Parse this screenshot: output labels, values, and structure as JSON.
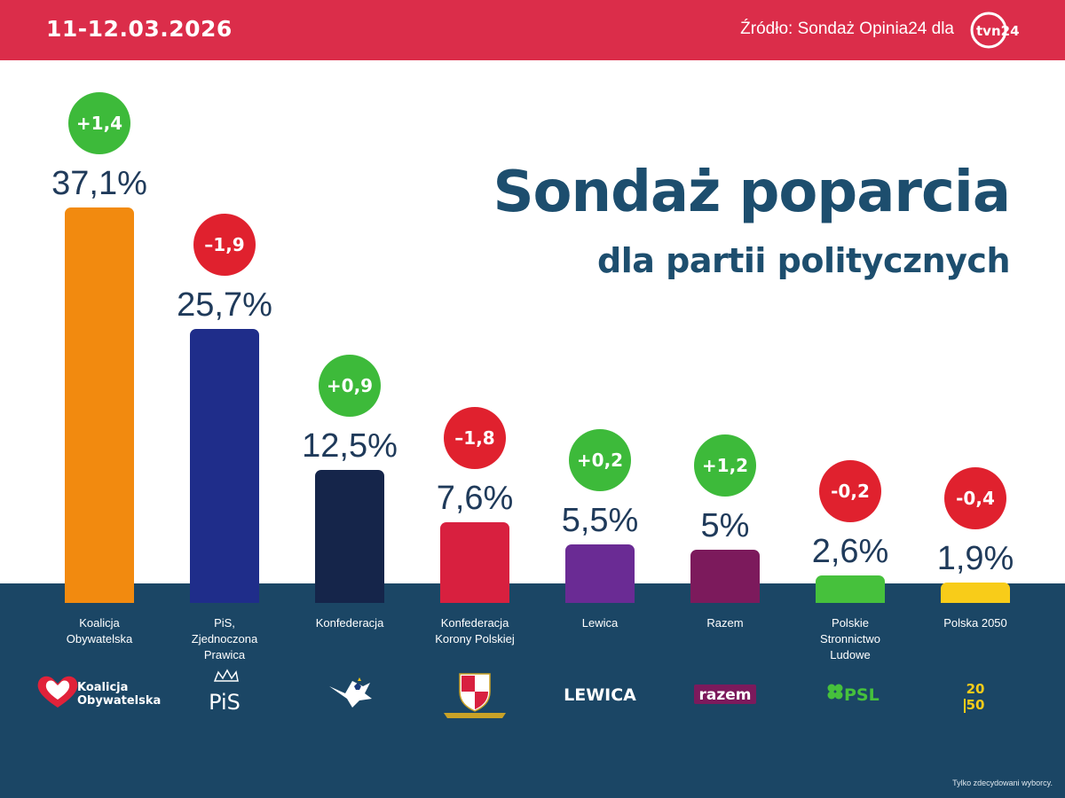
{
  "header": {
    "date": "11-12.03.2026",
    "source": "Źródło: Sondaż Opinia24 dla",
    "logo_text": "tvn24"
  },
  "title": "Sondaż poparcia",
  "subtitle": "dla partii politycznych",
  "footnote": "Tylko zdecydowani wyborcy.",
  "colors": {
    "header_bg": "#db2d4a",
    "bottom_bg": "#1b4665",
    "title": "#1d4e6e",
    "increase": "#3dba3a",
    "decrease": "#e0212e"
  },
  "chart_data": {
    "type": "bar",
    "categories": [
      "Koalicja Obywatelska",
      "PiS, Zjednoczona Prawica",
      "Konfederacja",
      "Konfederacja Korony Polskiej",
      "Lewica",
      "Razem",
      "Polskie Stronnictwo Ludowe",
      "Polska 2050"
    ],
    "values": [
      37.1,
      25.7,
      12.5,
      7.6,
      5.5,
      5,
      2.6,
      1.9
    ],
    "value_labels": [
      "37,1%",
      "25,7%",
      "12,5%",
      "7,6%",
      "5,5%",
      "5%",
      "2,6%",
      "1,9%"
    ],
    "changes": [
      1.4,
      -1.9,
      0.9,
      -1.8,
      0.2,
      1.2,
      -0.2,
      -0.4
    ],
    "change_labels": [
      "+1,4",
      "–1,9",
      "+0,9",
      "–1,8",
      "+0,2",
      "+1,2",
      "-0,2",
      "-0,4"
    ],
    "bar_colors": [
      "#f28a0f",
      "#1f2d8a",
      "#15254a",
      "#d8203f",
      "#6a2b94",
      "#7c1a5c",
      "#46c13c",
      "#f8cc19"
    ],
    "ylim": [
      0,
      37.1
    ]
  },
  "parties": [
    {
      "name_lines": [
        "Koalicja",
        "Obywatelska"
      ],
      "logo": {
        "icon": "heart-icon",
        "line1": "Koalicja",
        "line2": "Obywatelska"
      }
    },
    {
      "name_lines": [
        "PiS,",
        "Zjednoczona",
        "Prawica"
      ],
      "logo": {
        "icon": "crown-eagle-icon",
        "text": "PiS"
      }
    },
    {
      "name_lines": [
        "Konfederacja"
      ],
      "logo": {
        "icon": "eagle-icon"
      }
    },
    {
      "name_lines": [
        "Konfederacja",
        "Korony Polskiej"
      ],
      "logo": {
        "icon": "shield-crest-icon"
      }
    },
    {
      "name_lines": [
        "Lewica"
      ],
      "logo": {
        "text": "LEWICA"
      }
    },
    {
      "name_lines": [
        "Razem"
      ],
      "logo": {
        "text": "razem"
      }
    },
    {
      "name_lines": [
        "Polskie",
        "Stronnictwo",
        "Ludowe"
      ],
      "logo": {
        "icon": "clover-icon",
        "text": "PSL"
      }
    },
    {
      "name_lines": [
        "Polska 2050"
      ],
      "logo": {
        "icon": "2050-icon",
        "d1": "20",
        "d2": "50"
      }
    }
  ]
}
